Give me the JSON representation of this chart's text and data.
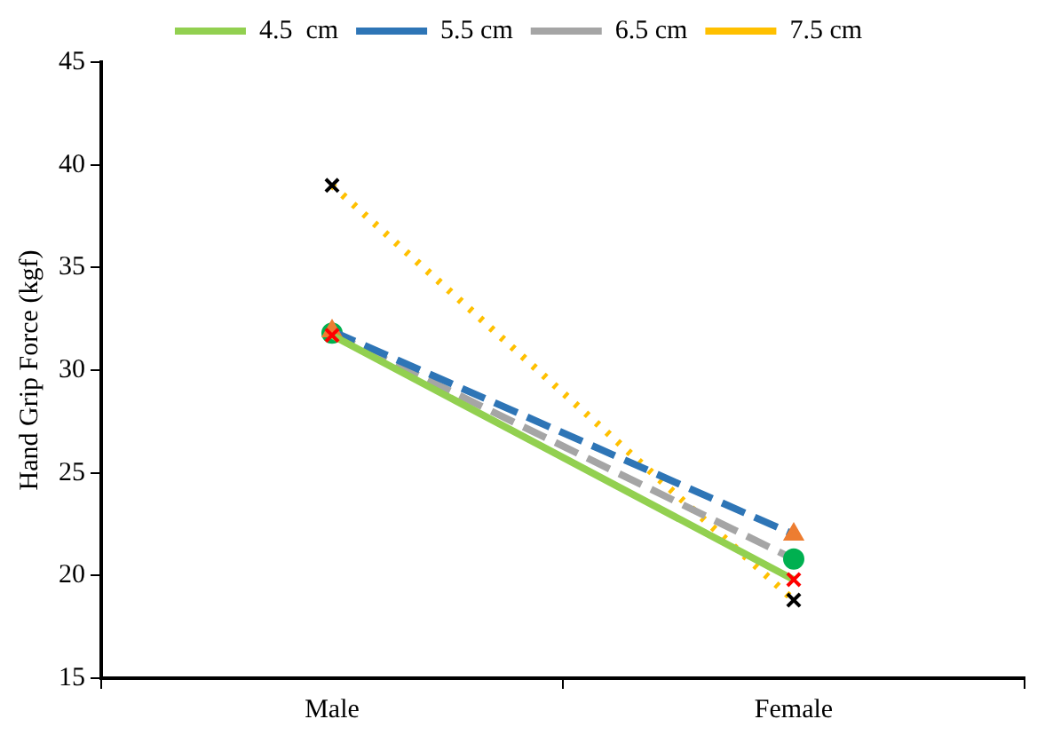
{
  "chart_data": {
    "type": "line",
    "ylabel": "Hand Grip Force (kgf)",
    "categories": [
      "Male",
      "Female"
    ],
    "ylim": [
      15,
      45
    ],
    "yticks": [
      15,
      20,
      25,
      30,
      35,
      40,
      45
    ],
    "grid": false,
    "legend": "top",
    "series": [
      {
        "name": "4.5  cm",
        "color": "#92d050",
        "colors": [
          "#ff0000",
          "#ff0000"
        ],
        "marker": "cross",
        "line_style": "solid",
        "values": [
          31.7,
          19.8
        ]
      },
      {
        "name": "5.5 cm",
        "color": "#2e75b6",
        "colors": [
          "#ed7d31",
          "#ed7d31"
        ],
        "marker": "triangle",
        "line_style": "dashed",
        "values": [
          31.9,
          22.0
        ]
      },
      {
        "name": "6.5 cm",
        "color": "#a5a5a5",
        "colors": [
          "#00b050",
          "#00b050"
        ],
        "marker": "circle",
        "line_style": "dashed",
        "values": [
          31.8,
          20.8
        ]
      },
      {
        "name": "7.5 cm",
        "color": "#ffc000",
        "colors": [
          "#000000",
          "#000000"
        ],
        "marker": "cross",
        "line_style": "dotted",
        "values": [
          39.0,
          18.8
        ]
      }
    ]
  }
}
